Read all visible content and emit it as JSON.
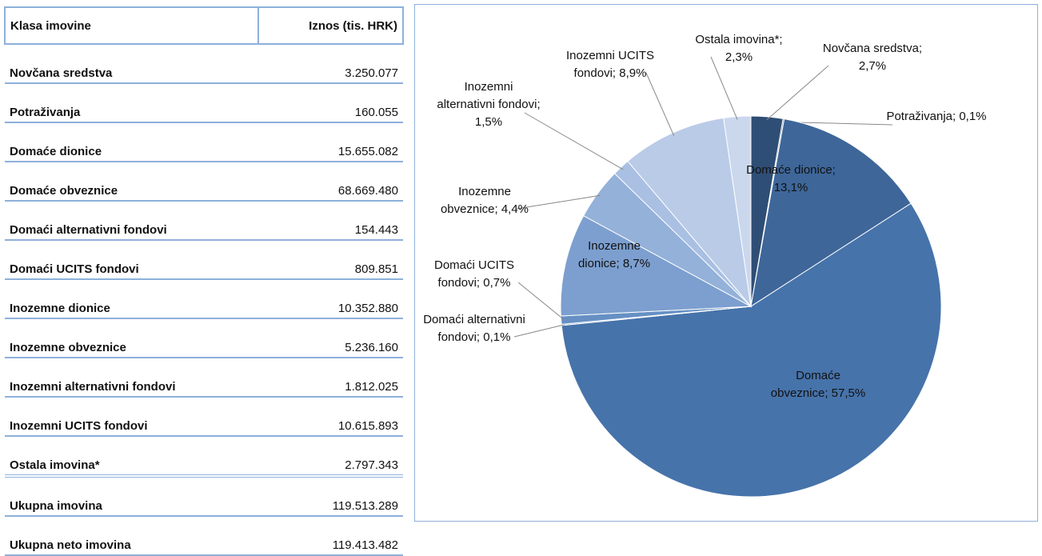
{
  "table": {
    "header": [
      "Klasa imovine",
      "Iznos (tis. HRK)"
    ],
    "rows": [
      [
        "Novčana sredstva",
        "3.250.077"
      ],
      [
        "Potraživanja",
        "160.055"
      ],
      [
        "Domaće dionice",
        "15.655.082"
      ],
      [
        "Domaće obveznice",
        "68.669.480"
      ],
      [
        "Domaći alternativni fondovi",
        "154.443"
      ],
      [
        "Domaći UCITS fondovi",
        "809.851"
      ],
      [
        "Inozemne dionice",
        "10.352.880"
      ],
      [
        "Inozemne obveznice",
        "5.236.160"
      ],
      [
        "Inozemni alternativni fondovi",
        "1.812.025"
      ],
      [
        "Inozemni UCITS fondovi",
        "10.615.893"
      ],
      [
        "Ostala imovina*",
        "2.797.343"
      ]
    ],
    "totals": [
      [
        "Ukupna imovina",
        "119.513.289"
      ],
      [
        "Ukupna neto imovina",
        "119.413.482"
      ]
    ]
  },
  "chart_data": {
    "type": "pie",
    "values": [
      2.7,
      0.1,
      13.1,
      57.5,
      0.1,
      0.7,
      8.7,
      4.4,
      1.5,
      8.9,
      2.3
    ],
    "value_labels": [
      "Novčana sredstva; 2,7%",
      "Potraživanja; 0,1%",
      "Domaće dionice; 13,1%",
      "Domaće obveznice; 57,5%",
      "Domaći alternativni fondovi; 0,1%",
      "Domaći UCITS fondovi; 0,7%",
      "Inozemne dionice; 8,7%",
      "Inozemne obveznice; 4,4%",
      "Inozemni alternativni fondovi; 1,5%",
      "Inozemni UCITS fondovi; 8,9%",
      "Ostala imovina*; 2,3%"
    ],
    "colors": [
      "#2f4e75",
      "#3a5d8c",
      "#3e6699",
      "#4673aa",
      "#5482ba",
      "#6690c4",
      "#7c9fcf",
      "#93b1d9",
      "#a9c0e2",
      "#b9cbe7",
      "#cad7ed"
    ]
  }
}
